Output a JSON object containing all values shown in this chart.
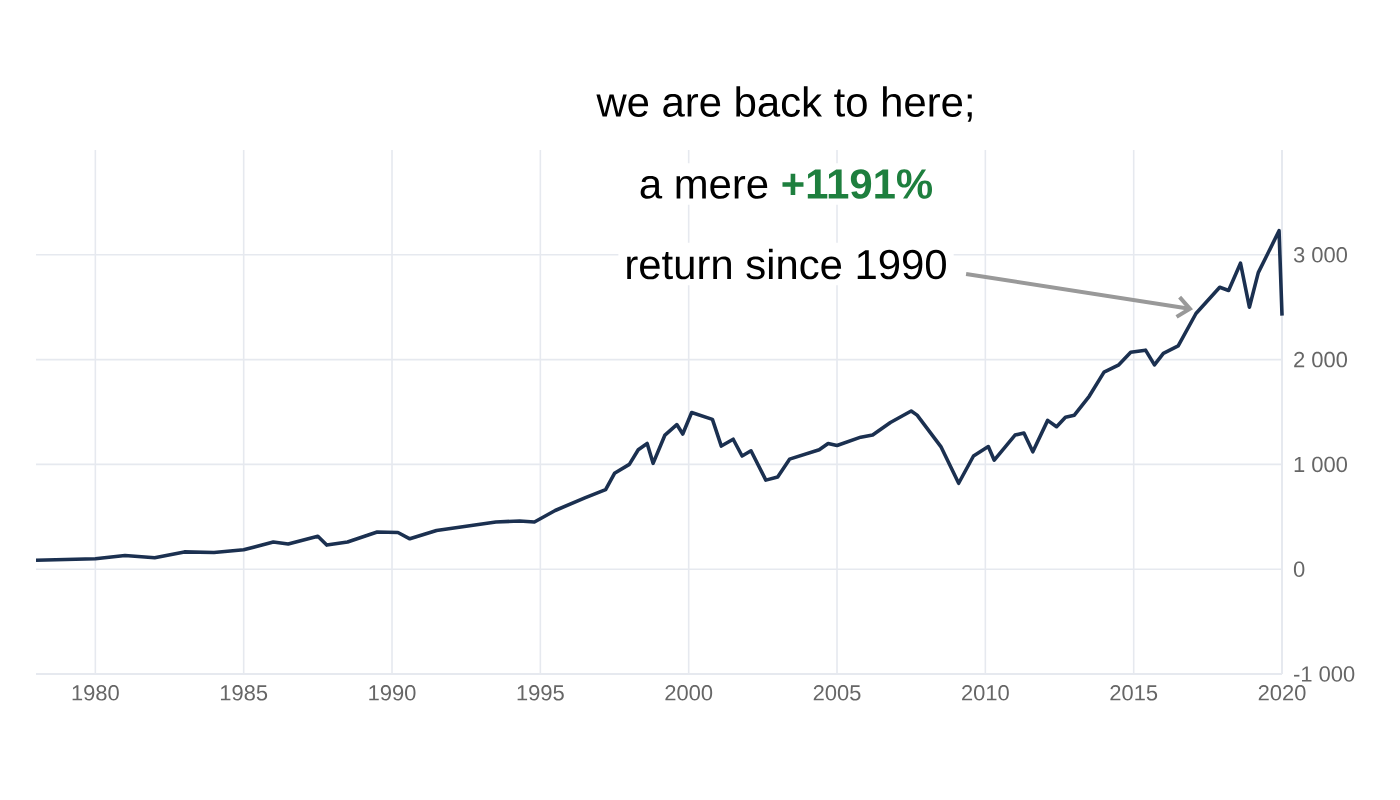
{
  "chart_data": {
    "type": "line",
    "x": [
      1978,
      1980,
      1981,
      1982,
      1983,
      1984,
      1985,
      1986,
      1986.5,
      1987.5,
      1987.8,
      1988.5,
      1989.5,
      1990.2,
      1990.6,
      1991.5,
      1992.5,
      1993.5,
      1994.3,
      1994.8,
      1995.5,
      1996.5,
      1997.2,
      1997.5,
      1998,
      1998.3,
      1998.6,
      1998.8,
      1999.2,
      1999.6,
      1999.8,
      2000.1,
      2000.8,
      2001.1,
      2001.5,
      2001.8,
      2002.1,
      2002.6,
      2003,
      2003.4,
      2004.4,
      2004.7,
      2005,
      2005.8,
      2006.2,
      2006.8,
      2007.5,
      2007.7,
      2008.1,
      2008.5,
      2009.1,
      2009.6,
      2010.1,
      2010.3,
      2011,
      2011.3,
      2011.6,
      2012.1,
      2012.4,
      2012.7,
      2013,
      2013.5,
      2014,
      2014.5,
      2014.9,
      2015.4,
      2015.7,
      2016,
      2016.5,
      2017.1,
      2017.9,
      2018.2,
      2018.6,
      2018.9,
      2019.2,
      2019.5,
      2019.9,
      2020
    ],
    "series": [
      {
        "color": "#1b3050",
        "values": [
          85,
          100,
          130,
          110,
          165,
          160,
          185,
          260,
          240,
          315,
          230,
          260,
          355,
          350,
          290,
          370,
          410,
          450,
          460,
          450,
          560,
          680,
          760,
          915,
          1000,
          1140,
          1200,
          1010,
          1280,
          1380,
          1290,
          1495,
          1430,
          1175,
          1240,
          1080,
          1130,
          850,
          880,
          1050,
          1140,
          1200,
          1180,
          1260,
          1280,
          1400,
          1510,
          1470,
          1320,
          1170,
          820,
          1080,
          1170,
          1040,
          1280,
          1300,
          1120,
          1420,
          1360,
          1450,
          1470,
          1650,
          1880,
          1950,
          2070,
          2090,
          1950,
          2060,
          2130,
          2440,
          2690,
          2660,
          2920,
          2500,
          2830,
          3000,
          3230,
          2420
        ]
      }
    ],
    "xlim": [
      1978,
      2020
    ],
    "xticks": [
      1980,
      1985,
      1990,
      1995,
      2000,
      2005,
      2010,
      2015,
      2020
    ],
    "ylim": [
      -1000,
      4000
    ],
    "yticks": [
      {
        "value": -1000,
        "label": "-1 000"
      },
      0,
      {
        "value": 1000,
        "label": "1 000"
      },
      {
        "value": 2000,
        "label": "2 000"
      },
      {
        "value": 3000,
        "label": "3 000"
      }
    ],
    "grid": true,
    "annotations": [
      "we are back to here;",
      "a mere",
      "+1191%",
      {
        "text": "return since 1990",
        "x": 2017,
        "y": 2480
      }
    ]
  }
}
